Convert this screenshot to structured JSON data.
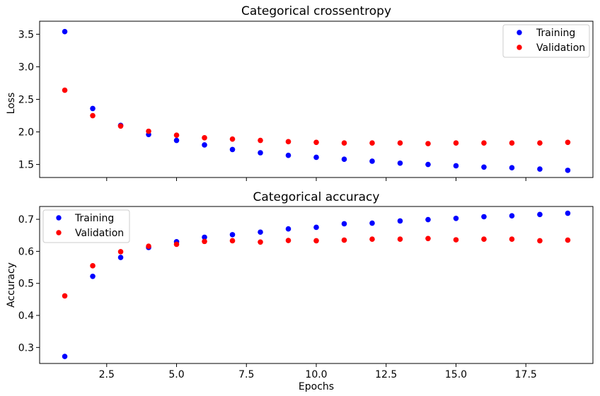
{
  "colors": {
    "training": "#0000ff",
    "validation": "#ff0000"
  },
  "chart_data": [
    {
      "type": "scatter",
      "title": "Categorical crossentropy",
      "xlabel": "",
      "ylabel": "Loss",
      "xlim": [
        0.1,
        19.9
      ],
      "ylim": [
        1.3,
        3.7
      ],
      "xticks": [
        2.5,
        5.0,
        7.5,
        10.0,
        12.5,
        15.0,
        17.5
      ],
      "xtick_labels_visible": false,
      "yticks": [
        1.5,
        2.0,
        2.5,
        3.0,
        3.5
      ],
      "ytick_labels": [
        "1.5",
        "2.0",
        "2.5",
        "3.0",
        "3.5"
      ],
      "legend_position": "top-right",
      "x": [
        1,
        2,
        3,
        4,
        5,
        6,
        7,
        8,
        9,
        10,
        11,
        12,
        13,
        14,
        15,
        16,
        17,
        18,
        19
      ],
      "series": [
        {
          "name": "Training",
          "color_key": "training",
          "values": [
            3.54,
            2.36,
            2.1,
            1.96,
            1.87,
            1.8,
            1.73,
            1.68,
            1.64,
            1.61,
            1.58,
            1.55,
            1.52,
            1.5,
            1.48,
            1.46,
            1.45,
            1.43,
            1.41
          ]
        },
        {
          "name": "Validation",
          "color_key": "validation",
          "values": [
            2.64,
            2.25,
            2.09,
            2.01,
            1.95,
            1.91,
            1.89,
            1.87,
            1.85,
            1.84,
            1.83,
            1.83,
            1.83,
            1.82,
            1.83,
            1.83,
            1.83,
            1.83,
            1.84
          ]
        }
      ]
    },
    {
      "type": "scatter",
      "title": "Categorical accuracy",
      "xlabel": "Epochs",
      "ylabel": "Accuracy",
      "xlim": [
        0.1,
        19.9
      ],
      "ylim": [
        0.25,
        0.74
      ],
      "xticks": [
        2.5,
        5.0,
        7.5,
        10.0,
        12.5,
        15.0,
        17.5
      ],
      "xtick_labels": [
        "2.5",
        "5.0",
        "7.5",
        "10.0",
        "12.5",
        "15.0",
        "17.5"
      ],
      "xtick_labels_visible": true,
      "yticks": [
        0.3,
        0.4,
        0.5,
        0.6,
        0.7
      ],
      "ytick_labels": [
        "0.3",
        "0.4",
        "0.5",
        "0.6",
        "0.7"
      ],
      "legend_position": "top-left",
      "x": [
        1,
        2,
        3,
        4,
        5,
        6,
        7,
        8,
        9,
        10,
        11,
        12,
        13,
        14,
        15,
        16,
        17,
        18,
        19
      ],
      "series": [
        {
          "name": "Training",
          "color_key": "training",
          "values": [
            0.272,
            0.522,
            0.581,
            0.612,
            0.63,
            0.644,
            0.652,
            0.66,
            0.67,
            0.675,
            0.686,
            0.688,
            0.695,
            0.699,
            0.703,
            0.708,
            0.711,
            0.715,
            0.719
          ]
        },
        {
          "name": "Validation",
          "color_key": "validation",
          "values": [
            0.461,
            0.555,
            0.599,
            0.616,
            0.622,
            0.631,
            0.633,
            0.629,
            0.634,
            0.633,
            0.635,
            0.638,
            0.638,
            0.64,
            0.636,
            0.638,
            0.638,
            0.633,
            0.635
          ]
        }
      ]
    }
  ]
}
